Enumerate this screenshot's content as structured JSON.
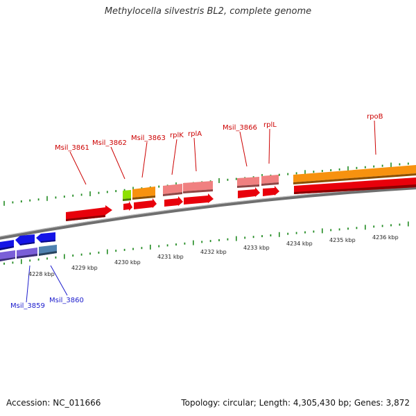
{
  "title": "Methylocella silvestris BL2, complete genome",
  "footer": {
    "accession": "Accession: NC_011666",
    "summary": "Topology: circular; Length: 4,305,430 bp; Genes: 3,872"
  },
  "colors": {
    "backbone": "#888888",
    "ticks": "#228b22",
    "label_forward": "#cc0000",
    "label_reverse": "#1a1acc",
    "gene_red": "#e8000b",
    "gene_orange": "#f7920f",
    "gene_pink": "#f08080",
    "gene_lightgreen": "#8ee000",
    "gene_blue": "#1414e6",
    "gene_purple": "#7a5fd8",
    "gene_steelblue": "#4f82b0"
  },
  "scale": {
    "unit": "kbp",
    "labels": [
      "4228 kbp",
      "4229 kbp",
      "4230 kbp",
      "4231 kbp",
      "4232 kbp",
      "4233 kbp",
      "4234 kbp",
      "4235 kbp",
      "4236 kbp"
    ]
  },
  "gene_labels": {
    "forward": [
      "Msil_3861",
      "Msil_3862",
      "Msil_3863",
      "rplK",
      "rplA",
      "Msil_3866",
      "rplL",
      "rpoB"
    ],
    "reverse": [
      "Msil_3859",
      "Msil_3860"
    ]
  }
}
